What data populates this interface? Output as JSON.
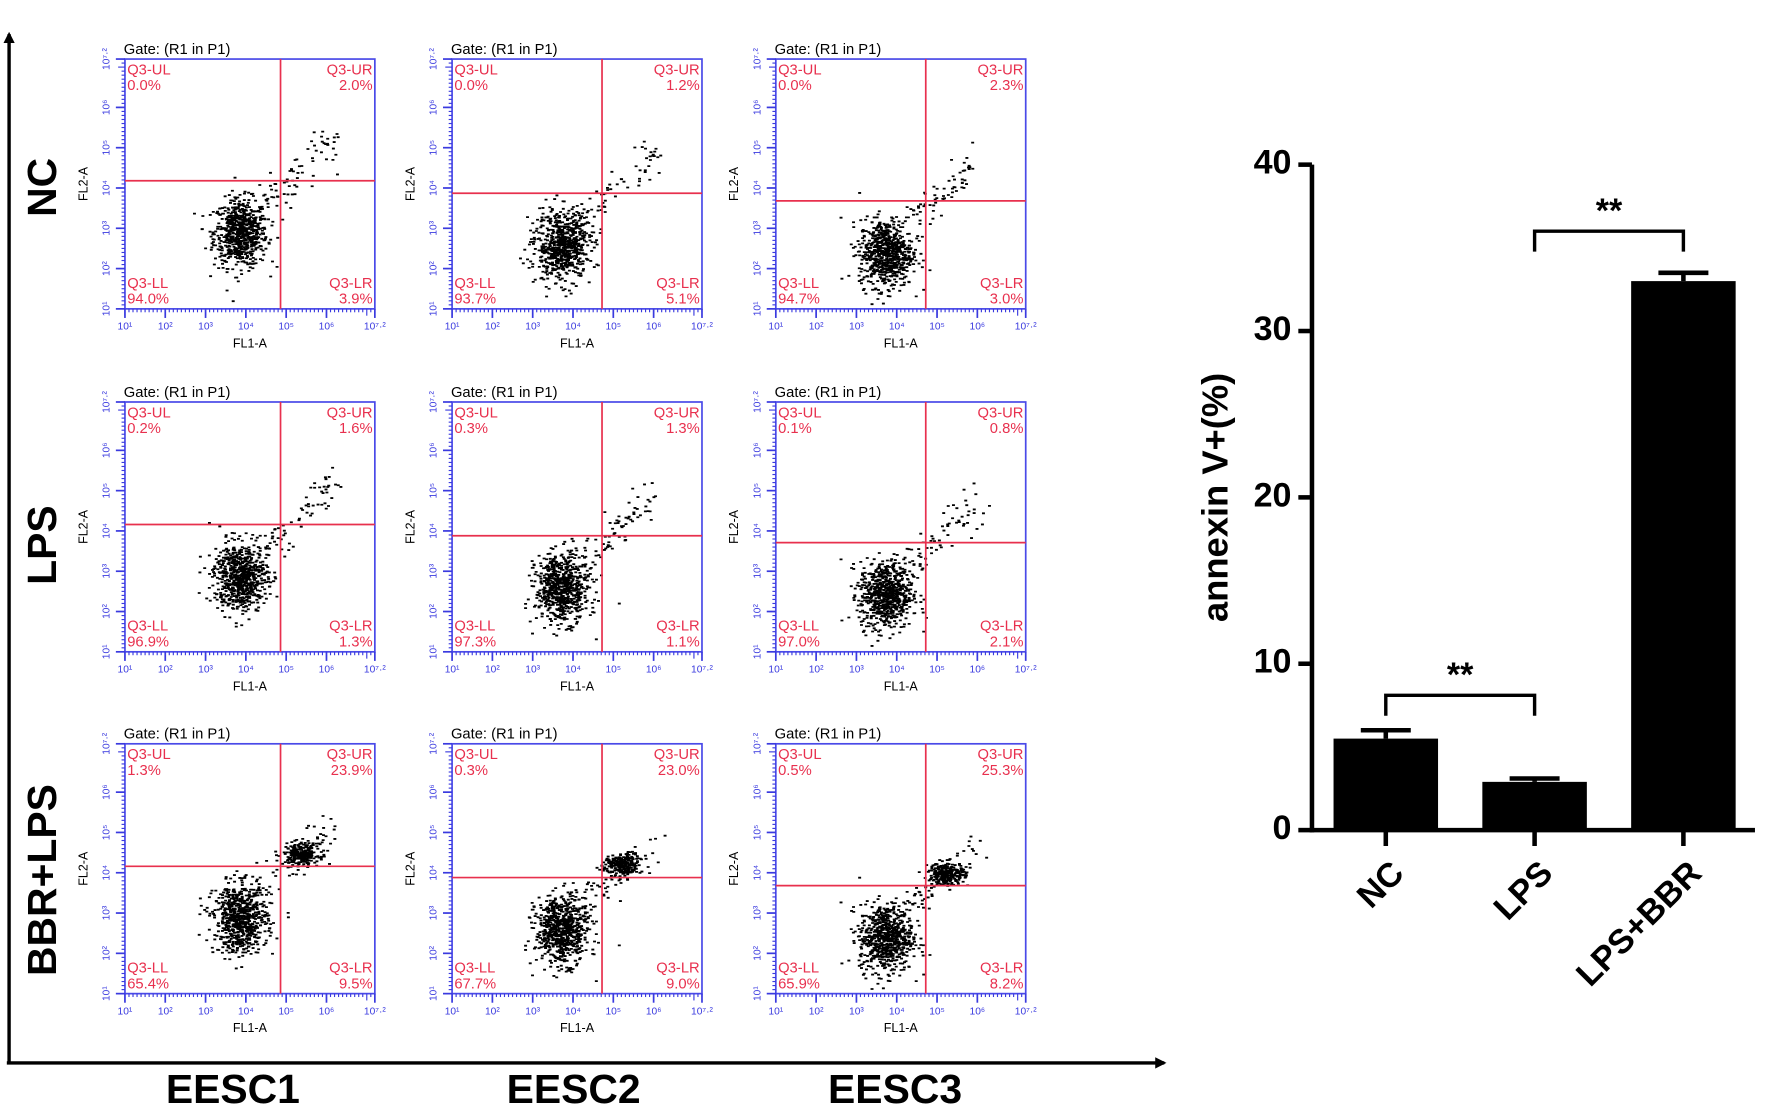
{
  "flow_cytometry": {
    "row_labels": [
      "NC",
      "LPS",
      "BBR+LPS"
    ],
    "column_labels": [
      "EESC1",
      "EESC2",
      "EESC3"
    ],
    "gate_label": "Gate: (R1 in P1)",
    "x_label": "FL1-A",
    "y_label": "FL2-A",
    "quadrant_names": [
      "Q3-UL",
      "Q3-UR",
      "Q3-LL",
      "Q3-LR"
    ],
    "axis": {
      "lim": [
        1,
        7.2
      ],
      "ticks": [
        {
          "value": 1,
          "label": "10¹"
        },
        {
          "value": 2,
          "label": "10²"
        },
        {
          "value": 3,
          "label": "10³"
        },
        {
          "value": 4,
          "label": "10⁴"
        },
        {
          "value": 5,
          "label": "10⁵"
        },
        {
          "value": 6,
          "label": "10⁶"
        },
        {
          "value": 7.2,
          "label": "10⁷·²"
        }
      ]
    },
    "panels": [
      [
        {
          "x_gate": 4.86,
          "y_gate": 4.18,
          "values": [
            0,
            2,
            94,
            3.9
          ],
          "value_labels": [
            "0.0%",
            "2.0%",
            "94.0%",
            "3.9%"
          ]
        },
        {
          "x_gate": 4.72,
          "y_gate": 3.87,
          "values": [
            0,
            1.2,
            93.7,
            5.1
          ],
          "value_labels": [
            "0.0%",
            "1.2%",
            "93.7%",
            "5.1%"
          ]
        },
        {
          "x_gate": 4.72,
          "y_gate": 3.68,
          "values": [
            0,
            2.3,
            94.7,
            3
          ],
          "value_labels": [
            "0.0%",
            "2.3%",
            "94.7%",
            "3.0%"
          ]
        }
      ],
      [
        {
          "x_gate": 4.86,
          "y_gate": 4.16,
          "values": [
            0.2,
            1.6,
            96.9,
            1.3
          ],
          "value_labels": [
            "0.2%",
            "1.6%",
            "96.9%",
            "1.3%"
          ]
        },
        {
          "x_gate": 4.72,
          "y_gate": 3.88,
          "values": [
            0.3,
            1.3,
            97.3,
            1.1
          ],
          "value_labels": [
            "0.3%",
            "1.3%",
            "97.3%",
            "1.1%"
          ]
        },
        {
          "x_gate": 4.72,
          "y_gate": 3.71,
          "values": [
            0.1,
            0.8,
            97,
            2.1
          ],
          "value_labels": [
            "0.1%",
            "0.8%",
            "97.0%",
            "2.1%"
          ]
        }
      ],
      [
        {
          "x_gate": 4.86,
          "y_gate": 4.16,
          "values": [
            1.3,
            23.9,
            65.4,
            9.5
          ],
          "value_labels": [
            "1.3%",
            "23.9%",
            "65.4%",
            "9.5%"
          ]
        },
        {
          "x_gate": 4.72,
          "y_gate": 3.88,
          "values": [
            0.3,
            23,
            67.7,
            9
          ],
          "value_labels": [
            "0.3%",
            "23.0%",
            "67.7%",
            "9.0%"
          ]
        },
        {
          "x_gate": 4.72,
          "y_gate": 3.68,
          "values": [
            0.5,
            25.3,
            65.9,
            8.2
          ],
          "value_labels": [
            "0.5%",
            "25.3%",
            "65.9%",
            "8.2%"
          ]
        }
      ]
    ]
  },
  "chart_data": {
    "type": "bar",
    "y_label": "annexin V+(%)",
    "categories": [
      "NC",
      "LPS",
      "LPS+BBR"
    ],
    "values": [
      5.5,
      2.9,
      33
    ],
    "errors": [
      0.5,
      0.2,
      0.5
    ],
    "color": "#000000",
    "ylim": [
      0,
      40
    ],
    "yticks": [
      0,
      10,
      20,
      30,
      40
    ],
    "annotations": [
      {
        "text": "**",
        "between": [
          0,
          1
        ],
        "y": 8.1
      },
      {
        "text": "**",
        "between": [
          1,
          2
        ],
        "y": 36
      }
    ]
  }
}
